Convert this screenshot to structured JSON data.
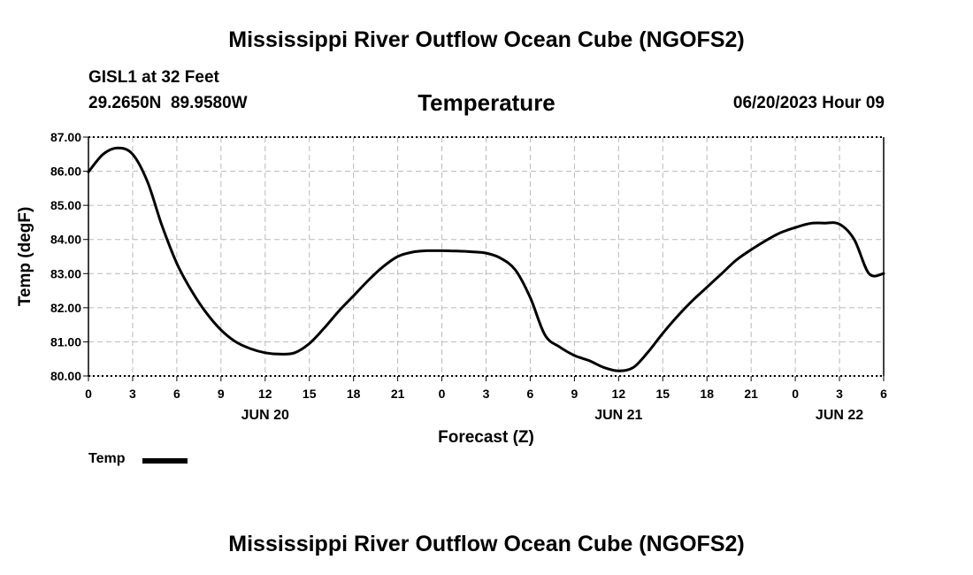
{
  "header": {
    "main_title": "Mississippi River Outflow Ocean Cube (NGOFS2)",
    "station": "GISL1 at 32 Feet",
    "coords": "29.2650N  89.9580W",
    "variable": "Temperature",
    "run_time": "06/20/2023 Hour 09"
  },
  "footer": {
    "title": "Mississippi River Outflow Ocean Cube (NGOFS2)"
  },
  "legend": {
    "label": "Temp"
  },
  "chart_data": {
    "type": "line",
    "title": "Temperature",
    "xlabel": "Forecast (Z)",
    "ylabel": "Temp (degF)",
    "xlim": [
      0,
      54
    ],
    "ylim": [
      80.0,
      87.0
    ],
    "yticks": [
      "80.00",
      "81.00",
      "82.00",
      "83.00",
      "84.00",
      "85.00",
      "86.00",
      "87.00"
    ],
    "y_tick_values": [
      80,
      81,
      82,
      83,
      84,
      85,
      86,
      87
    ],
    "xtick_labels": [
      "0",
      "3",
      "6",
      "9",
      "12",
      "15",
      "18",
      "21",
      "0",
      "3",
      "6",
      "9",
      "12",
      "15",
      "18",
      "21",
      "0",
      "3",
      "6"
    ],
    "x_tick_hours": [
      0,
      3,
      6,
      9,
      12,
      15,
      18,
      21,
      24,
      27,
      30,
      33,
      36,
      39,
      42,
      45,
      48,
      51,
      54
    ],
    "date_labels": [
      {
        "label": "JUN 20",
        "hour": 12
      },
      {
        "label": "JUN 21",
        "hour": 36
      },
      {
        "label": "JUN 22",
        "hour": 51
      }
    ],
    "grid": true,
    "series": [
      {
        "name": "Temp",
        "color": "#000000",
        "x": [
          0,
          1,
          2,
          3,
          4,
          5,
          6,
          7,
          8,
          9,
          10,
          11,
          12,
          13,
          14,
          15,
          16,
          17,
          18,
          19,
          20,
          21,
          22,
          23,
          24,
          25,
          26,
          27,
          28,
          29,
          30,
          31,
          32,
          33,
          34,
          35,
          36,
          37,
          38,
          39,
          40,
          41,
          42,
          43,
          44,
          45,
          46,
          47,
          48,
          49,
          50,
          51,
          52,
          53,
          54
        ],
        "values": [
          85.98,
          86.5,
          86.68,
          86.5,
          85.7,
          84.4,
          83.3,
          82.5,
          81.85,
          81.35,
          81.0,
          80.8,
          80.68,
          80.64,
          80.68,
          80.95,
          81.4,
          81.9,
          82.35,
          82.8,
          83.2,
          83.5,
          83.63,
          83.67,
          83.67,
          83.66,
          83.64,
          83.6,
          83.45,
          83.1,
          82.3,
          81.2,
          80.85,
          80.6,
          80.45,
          80.25,
          80.15,
          80.25,
          80.7,
          81.25,
          81.75,
          82.2,
          82.6,
          83.0,
          83.4,
          83.7,
          83.97,
          84.2,
          84.35,
          84.47,
          84.48,
          84.45,
          84.0,
          83.0,
          83.0
        ]
      }
    ]
  }
}
